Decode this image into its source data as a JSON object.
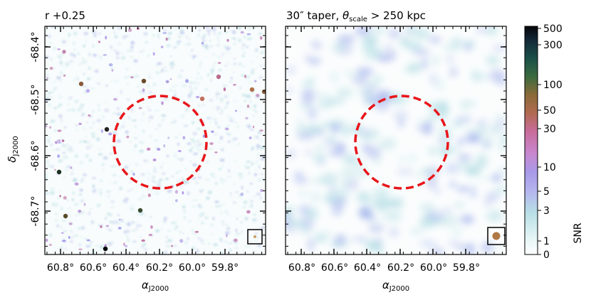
{
  "panels": [
    {
      "title": "r +0.25",
      "beam_color": "#c8a060",
      "ylabel_main": "δ",
      "ylabel_sub": "J2000"
    },
    {
      "title_main": "30″ taper, ",
      "title_theta": "θ",
      "title_sub": "scale",
      "title_rest": " > 250 kpc",
      "beam_color": "#b07845"
    }
  ],
  "x_axis": {
    "label_main": "α",
    "label_sub": "J2000",
    "ticks": [
      "60.8°",
      "60.6°",
      "60.4°",
      "60.2°",
      "60.0°",
      "59.8°"
    ]
  },
  "y_axis": {
    "ticks": [
      "-68.4°",
      "-68.5°",
      "-68.6°",
      "-68.7°"
    ]
  },
  "colorbar": {
    "label": "SNR",
    "ticks": [
      "0",
      "1",
      "3",
      "5",
      "10",
      "30",
      "50",
      "100",
      "300",
      "500"
    ]
  },
  "overlay": {
    "circle_color": "#e8161b"
  }
}
